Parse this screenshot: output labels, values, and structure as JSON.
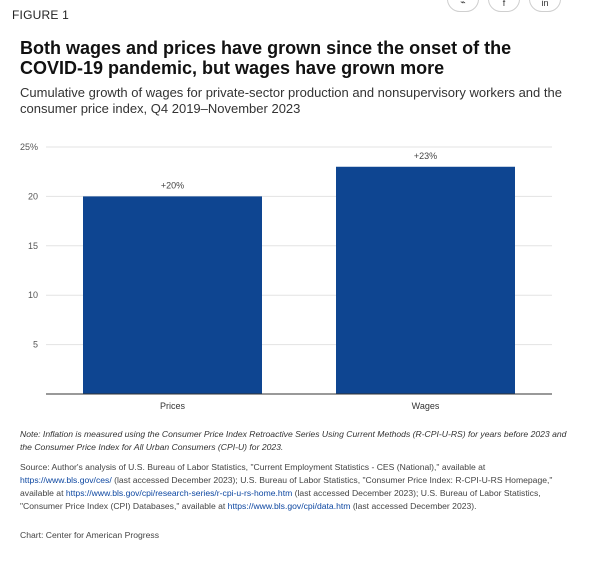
{
  "figure_label": "FIGURE 1",
  "share_buttons": [
    {
      "icon": "link-icon",
      "glyph": "⌁"
    },
    {
      "icon": "facebook-icon",
      "glyph": "f"
    },
    {
      "icon": "linkedin-icon",
      "glyph": "in"
    }
  ],
  "title": "Both wages and prices have grown since the onset of the COVID-19 pandemic, but wages have grown more",
  "subtitle": "Cumulative growth of wages for private-sector production and nonsupervisory workers and the consumer price index, Q4 2019–November 2023",
  "chart_data": {
    "type": "bar",
    "categories": [
      "Prices",
      "Wages"
    ],
    "values": [
      20,
      23
    ],
    "data_labels": [
      "+20%",
      "+23%"
    ],
    "y_ticks": [
      5,
      10,
      15,
      20,
      25
    ],
    "y_tick_labels": [
      "5",
      "10",
      "15",
      "20",
      "25%"
    ],
    "ylim": [
      0,
      25
    ],
    "grid": true,
    "bar_color": "#0e4591",
    "title": "",
    "xlabel": "",
    "ylabel": ""
  },
  "note": "Note: Inflation is measured using the Consumer Price Index Retroactive Series Using Current Methods (R-CPI-U-RS) for years before 2023 and the Consumer Price Index for All Urban Consumers (CPI-U) for 2023.",
  "source": {
    "p1": "Source: Author's analysis of U.S. Bureau of Labor Statistics, \"Current Employment Statistics - CES (National),\" available at ",
    "link1": "https://www.bls.gov/ces/",
    "p2": " (last accessed December 2023); U.S. Bureau of Labor Statistics, \"Consumer Price Index: R-CPI-U-RS Homepage,\" available at ",
    "link2": "https://www.bls.gov/cpi/research-series/r-cpi-u-rs-home.htm",
    "p3": " (last accessed December 2023); U.S. Bureau of Labor Statistics, \"Consumer Price Index (CPI) Databases,\" available at ",
    "link3": "https://www.bls.gov/cpi/data.htm",
    "p4": " (last accessed December 2023)."
  },
  "credit": "Chart: Center for American Progress"
}
